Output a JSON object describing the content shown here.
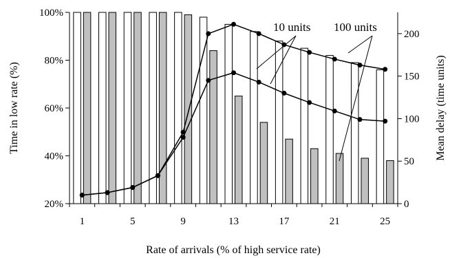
{
  "chart_data": {
    "type": "bar+line",
    "x": [
      1,
      3,
      5,
      7,
      9,
      11,
      13,
      15,
      17,
      19,
      21,
      23,
      25
    ],
    "x_tick_labels": [
      "1",
      "5",
      "9",
      "13",
      "17",
      "21",
      "25"
    ],
    "xlabel": "Rate of arrivals (% of high service rate)",
    "ylabel_left": "Time in low rate (%)",
    "ylabel_right": "Mean delay (time units)",
    "ylim_left": [
      20,
      100
    ],
    "ylim_right": [
      0,
      225
    ],
    "y_left_ticks": [
      "20%",
      "40%",
      "60%",
      "80%",
      "100%"
    ],
    "y_left_tick_values": [
      20,
      40,
      60,
      80,
      100
    ],
    "y_right_ticks": [
      "0",
      "50",
      "100",
      "150",
      "200"
    ],
    "y_right_tick_values": [
      0,
      50,
      100,
      150,
      200
    ],
    "bar_series": [
      {
        "axis": "left",
        "color": "#ffffff",
        "values": [
          100,
          100,
          100,
          100,
          100,
          98,
          95,
          92,
          88,
          85,
          82,
          79,
          76
        ]
      },
      {
        "axis": "left",
        "color": "#c0c0c0",
        "values": [
          100,
          100,
          100,
          100,
          99,
          84,
          65,
          54,
          47,
          43,
          41,
          39,
          38
        ]
      }
    ],
    "line_series": [
      {
        "axis": "right",
        "values": [
          10,
          13,
          19,
          33,
          84,
          200,
          211,
          200,
          187,
          178,
          170,
          163,
          158
        ]
      },
      {
        "axis": "right",
        "values": [
          10,
          13,
          19,
          33,
          78,
          145,
          154,
          143,
          130,
          119,
          109,
          99,
          97
        ]
      }
    ],
    "annotations": [
      "10 units",
      "100 units"
    ],
    "grid": false
  }
}
